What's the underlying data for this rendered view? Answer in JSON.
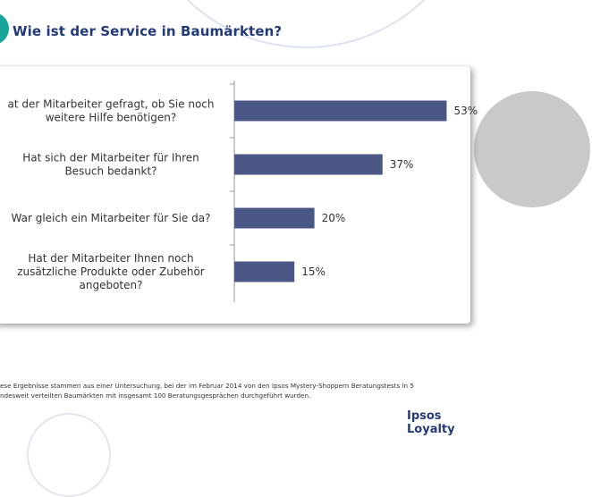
{
  "title": "Wie ist der Service in Baumärkten?",
  "chart_data": {
    "type": "bar",
    "orientation": "horizontal",
    "categories": [
      [
        "at der Mitarbeiter gefragt, ob Sie noch",
        "weitere Hilfe benötigen?"
      ],
      [
        "Hat sich der Mitarbeiter für Ihren",
        "Besuch bedankt?"
      ],
      [
        "War gleich ein Mitarbeiter für Sie da?"
      ],
      [
        "Hat der Mitarbeiter Ihnen noch",
        "zusätzliche Produkte oder Zubehör",
        "angeboten?"
      ]
    ],
    "values": [
      53,
      37,
      20,
      15
    ],
    "value_labels": [
      "53%",
      "37%",
      "20%",
      "15%"
    ],
    "xlim": [
      0,
      100
    ],
    "bar_color": "#4a5785",
    "grid": false,
    "legend": "none"
  },
  "footnote": {
    "line1": "ese Ergebnisse stammen aus einer Untersuchung,  bei der im Februar  2014 von den Ipsos  Mystery-Shoppern Beratungstests in 5",
    "line2": "ndesweit  verteilten Baumärkten mit insgesamt 100 Beratungsgesprächen durchgeführt wurden."
  },
  "brand": "Ipsos Loyalty",
  "colors": {
    "title": "#233a7a",
    "accent": "#19a49a",
    "bar": "#4a5785"
  }
}
